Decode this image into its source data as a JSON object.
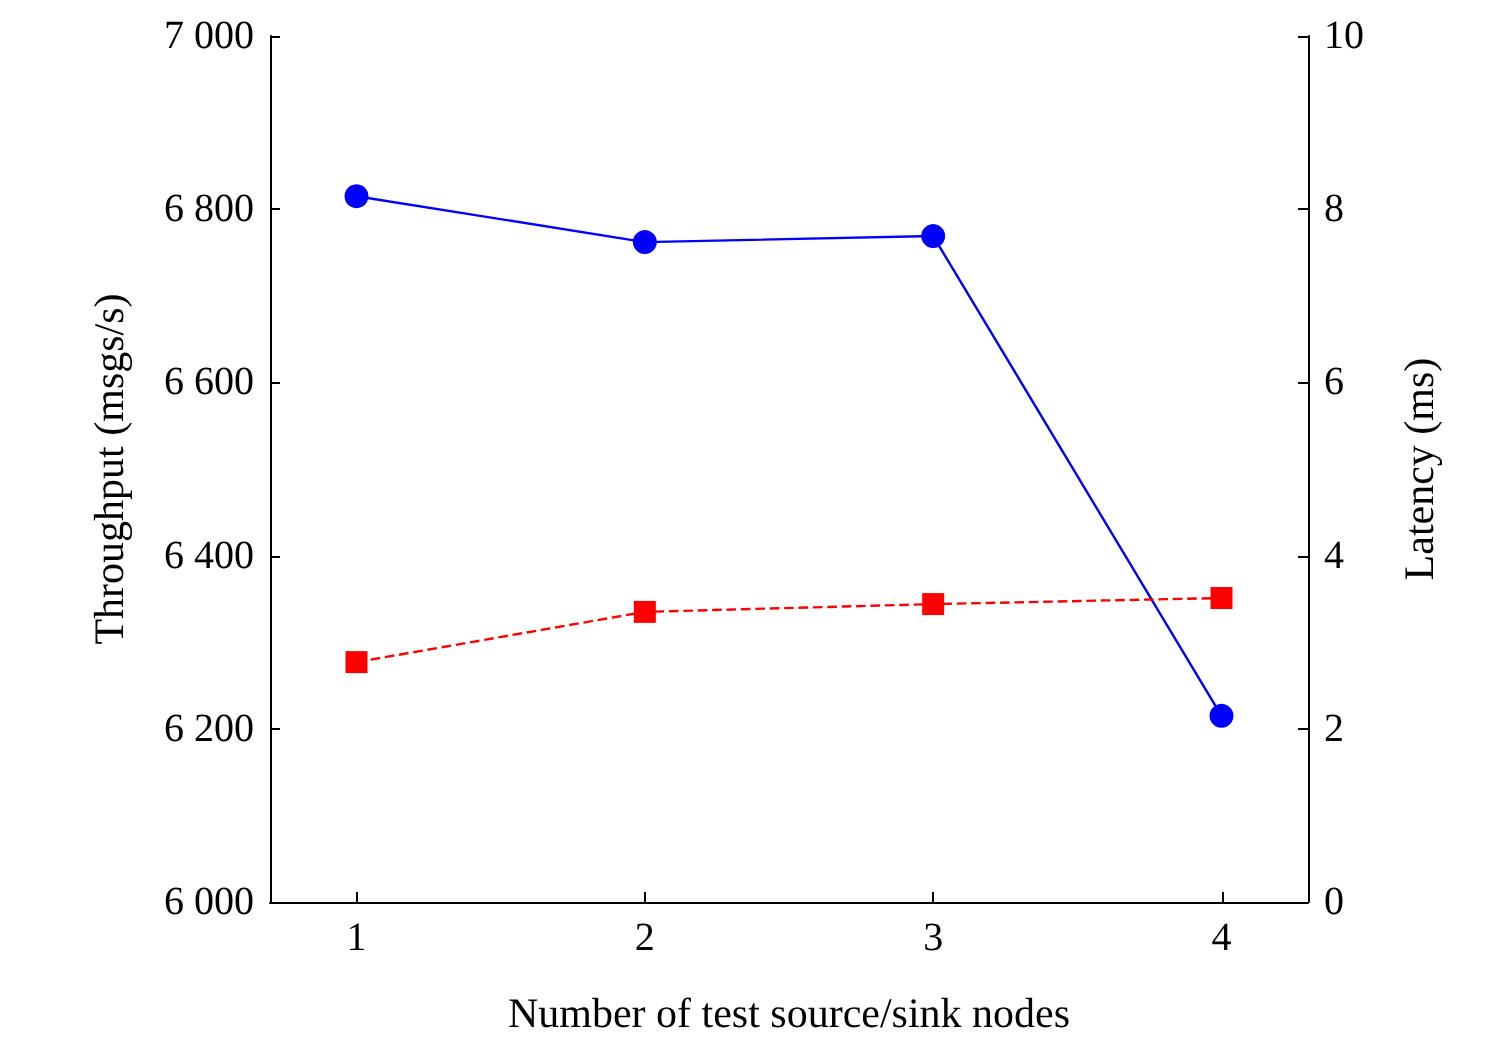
{
  "chart_data": {
    "type": "line",
    "xlabel": "Number of test source/sink nodes",
    "ylabel": "Throughput (msgs/s)",
    "y2label": "Latency (ms)",
    "x": [
      1,
      2,
      3,
      4
    ],
    "xlim": [
      0.7,
      4.3
    ],
    "xticks": [
      1,
      2,
      3,
      4
    ],
    "ylim": [
      6000,
      7000
    ],
    "yticks": [
      {
        "value": 6000,
        "label": "6 000"
      },
      {
        "value": 6200,
        "label": "6 200"
      },
      {
        "value": 6400,
        "label": "6 400"
      },
      {
        "value": 6600,
        "label": "6 600"
      },
      {
        "value": 6800,
        "label": "6 800"
      },
      {
        "value": 7000,
        "label": "7 000"
      }
    ],
    "y2lim": [
      0,
      10
    ],
    "y2ticks": [
      0,
      2,
      4,
      6,
      8,
      10
    ],
    "series": [
      {
        "color": "#0000ff",
        "values": [
          6815,
          6762,
          6769,
          6215
        ],
        "marker": "circle",
        "line_style": "solid"
      },
      {
        "color": "#ff0000",
        "values": [
          2.77,
          3.35,
          3.44,
          3.51
        ],
        "axis": "y2",
        "marker": "square",
        "line_style": "dashed"
      }
    ]
  }
}
